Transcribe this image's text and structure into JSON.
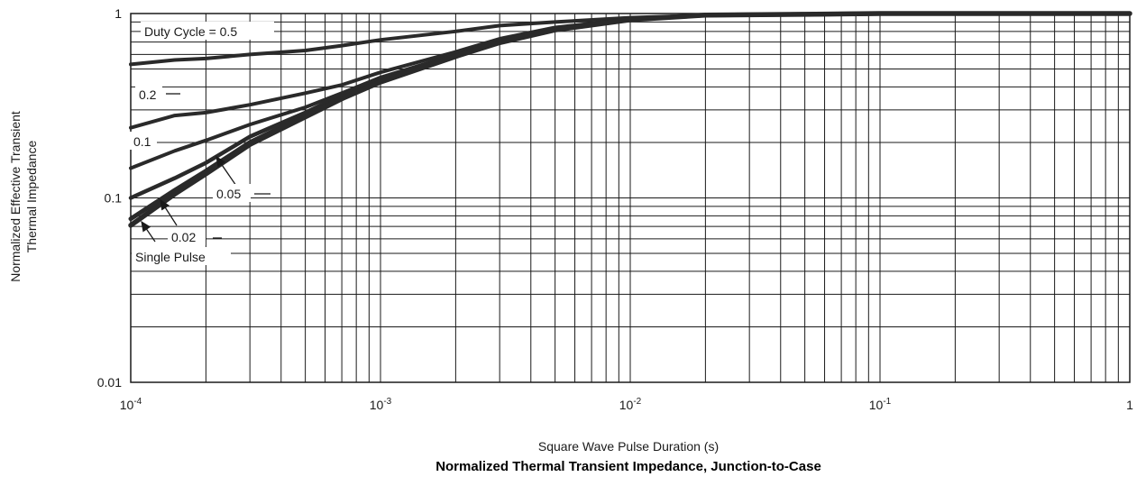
{
  "chart_data": {
    "type": "line",
    "title": "Normalized Thermal Transient Impedance, Junction-to-Case",
    "xlabel": "Square Wave Pulse Duration (s)",
    "ylabel": [
      "Normalized Effective Transient",
      "Thermal Impedance"
    ],
    "x_scale": "log",
    "y_scale": "log",
    "xlim": [
      0.0001,
      1
    ],
    "ylim": [
      0.01,
      1
    ],
    "grid": true,
    "x_ticks": [
      {
        "base": "10",
        "exp": "-4"
      },
      {
        "base": "10",
        "exp": "-3"
      },
      {
        "base": "10",
        "exp": "-2"
      },
      {
        "base": "10",
        "exp": "-1"
      },
      {
        "base": "1",
        "exp": ""
      }
    ],
    "y_ticks": [
      "0.01",
      "0.1",
      "1"
    ],
    "series": [
      {
        "name": "Duty Cycle = 0.5",
        "x": [
          0.0001,
          0.00015,
          0.0002,
          0.0003,
          0.0005,
          0.0007,
          0.001,
          0.002,
          0.003,
          0.005,
          0.01,
          0.02,
          0.05,
          0.1,
          1
        ],
        "y": [
          0.53,
          0.56,
          0.57,
          0.6,
          0.63,
          0.67,
          0.72,
          0.8,
          0.86,
          0.9,
          0.95,
          0.98,
          0.99,
          1.0,
          1.0
        ]
      },
      {
        "name": "0.2",
        "x": [
          0.0001,
          0.00015,
          0.0002,
          0.0003,
          0.0005,
          0.0007,
          0.001,
          0.002,
          0.003,
          0.005,
          0.01,
          0.02,
          0.05,
          0.1,
          1
        ],
        "y": [
          0.24,
          0.28,
          0.29,
          0.32,
          0.37,
          0.41,
          0.48,
          0.62,
          0.73,
          0.84,
          0.93,
          0.98,
          0.99,
          1.0,
          1.0
        ]
      },
      {
        "name": "0.1",
        "x": [
          0.0001,
          0.00015,
          0.0002,
          0.0003,
          0.0005,
          0.0007,
          0.001,
          0.002,
          0.003,
          0.005,
          0.01,
          0.02,
          0.05,
          0.1,
          1
        ],
        "y": [
          0.145,
          0.18,
          0.205,
          0.25,
          0.31,
          0.37,
          0.45,
          0.6,
          0.71,
          0.83,
          0.93,
          0.98,
          0.99,
          1.0,
          1.0
        ]
      },
      {
        "name": "0.05",
        "x": [
          0.0001,
          0.00015,
          0.0002,
          0.0003,
          0.0005,
          0.0007,
          0.001,
          0.002,
          0.003,
          0.005,
          0.01,
          0.02,
          0.05,
          0.1,
          1
        ],
        "y": [
          0.1,
          0.128,
          0.155,
          0.215,
          0.29,
          0.36,
          0.44,
          0.6,
          0.71,
          0.83,
          0.93,
          0.98,
          0.99,
          1.0,
          1.0
        ]
      },
      {
        "name": "0.02",
        "x": [
          0.0001,
          0.00015,
          0.0002,
          0.0003,
          0.0005,
          0.0007,
          0.001,
          0.002,
          0.003,
          0.005,
          0.01,
          0.02,
          0.05,
          0.1,
          1
        ],
        "y": [
          0.077,
          0.11,
          0.14,
          0.2,
          0.28,
          0.35,
          0.43,
          0.59,
          0.7,
          0.82,
          0.93,
          0.98,
          0.99,
          1.0,
          1.0
        ]
      },
      {
        "name": "Single Pulse",
        "x": [
          0.0001,
          0.00015,
          0.0002,
          0.0003,
          0.0005,
          0.0007,
          0.001,
          0.002,
          0.003,
          0.005,
          0.01,
          0.02,
          0.05,
          0.1,
          1
        ],
        "y": [
          0.071,
          0.105,
          0.135,
          0.195,
          0.275,
          0.345,
          0.425,
          0.585,
          0.695,
          0.815,
          0.925,
          0.98,
          0.99,
          1.0,
          1.0
        ]
      }
    ],
    "annotations": [
      "Duty Cycle = 0.5",
      "0.2",
      "0.1",
      "0.05",
      "0.02",
      "Single Pulse"
    ]
  },
  "colors": {
    "line": "#2a2a2a",
    "grid": "#1a1a1a",
    "background": "#ffffff"
  }
}
